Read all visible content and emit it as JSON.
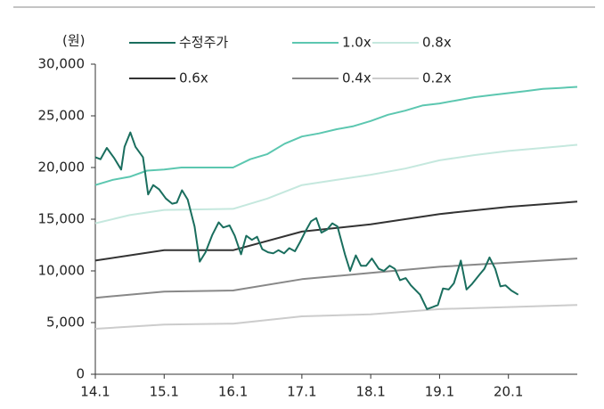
{
  "chart_data": {
    "type": "line",
    "unit_label": "(원)",
    "legend": "top",
    "grid": false,
    "xlim": [
      0,
      84
    ],
    "xticks": [
      {
        "value": 0,
        "label": "14.1"
      },
      {
        "value": 12,
        "label": "15.1"
      },
      {
        "value": 24,
        "label": "16.1"
      },
      {
        "value": 36,
        "label": "17.1"
      },
      {
        "value": 48,
        "label": "18.1"
      },
      {
        "value": 60,
        "label": "19.1"
      },
      {
        "value": 72,
        "label": "20.1"
      }
    ],
    "ylim": [
      0,
      30000
    ],
    "yticks": [
      0,
      {
        "value": 5000,
        "label": "5,000"
      },
      {
        "value": 10000,
        "label": "10,000"
      },
      {
        "value": 15000,
        "label": "15,000"
      },
      {
        "value": 20000,
        "label": "20,000"
      },
      {
        "value": 25000,
        "label": "25,000"
      },
      {
        "value": 30000,
        "label": "30,000"
      }
    ],
    "series": [
      {
        "name": "수정주가",
        "color": "#1a6e5e",
        "x": [
          0,
          0.9,
          2.0,
          3.3,
          4.5,
          5.1,
          6.1,
          7.0,
          8.3,
          9.2,
          10.1,
          11.1,
          12.3,
          13.4,
          14.2,
          15.1,
          16.1,
          17.3,
          18.2,
          19.2,
          20.4,
          21.5,
          22.3,
          23.4,
          24.3,
          25.4,
          26.3,
          27.3,
          28.2,
          29.1,
          30.1,
          31.0,
          31.9,
          32.9,
          33.8,
          34.8,
          35.7,
          36.6,
          37.6,
          38.5,
          39.4,
          40.4,
          41.3,
          42.2,
          43.5,
          44.4,
          45.4,
          46.3,
          47.2,
          48.2,
          49.4,
          50.3,
          51.3,
          52.2,
          53.1,
          54.1,
          55.0,
          56.6,
          57.8,
          58.8,
          59.7,
          60.6,
          61.6,
          62.5,
          63.7,
          64.7,
          65.6,
          66.9,
          67.8,
          68.7,
          69.7,
          70.6,
          71.5,
          72.5,
          73.7
        ],
        "values": [
          21000,
          20800,
          21900,
          20900,
          19800,
          22000,
          23400,
          22000,
          21000,
          17400,
          18300,
          17900,
          17000,
          16500,
          16600,
          17800,
          16900,
          14300,
          10900,
          11800,
          13500,
          14700,
          14200,
          14400,
          13400,
          11600,
          13400,
          13000,
          13300,
          12100,
          11800,
          11700,
          12000,
          11700,
          12200,
          11900,
          12800,
          13800,
          14800,
          15100,
          13700,
          14000,
          14600,
          14300,
          11600,
          10000,
          11500,
          10500,
          10500,
          11200,
          10200,
          10000,
          10500,
          10200,
          9100,
          9300,
          8600,
          7700,
          6300,
          6500,
          6700,
          8300,
          8200,
          8800,
          11000,
          8200,
          8700,
          9600,
          10200,
          11300,
          10200,
          8500,
          8600,
          8100,
          7700
        ]
      },
      {
        "name": "1.0x",
        "color": "#5cc7b0",
        "x": [
          0,
          3,
          6,
          9,
          12,
          15,
          18,
          21,
          24,
          27,
          30,
          33,
          36,
          39,
          42,
          45,
          48,
          51,
          54,
          57,
          60,
          63,
          66,
          69,
          72,
          75,
          78,
          81,
          84
        ],
        "values": [
          18300,
          18800,
          19100,
          19700,
          19800,
          20000,
          20000,
          20000,
          20000,
          20800,
          21300,
          22300,
          23000,
          23300,
          23700,
          24000,
          24500,
          25100,
          25500,
          26000,
          26200,
          26500,
          26800,
          27000,
          27200,
          27400,
          27600,
          27700,
          27800
        ]
      },
      {
        "name": "0.8x",
        "color": "#c5e8de",
        "x": [
          0,
          6,
          12,
          24,
          30,
          36,
          42,
          48,
          54,
          60,
          66,
          72,
          78,
          84
        ],
        "values": [
          14600,
          15400,
          15900,
          16000,
          17000,
          18300,
          18800,
          19300,
          19900,
          20700,
          21200,
          21600,
          21900,
          22200
        ]
      },
      {
        "name": "0.6x",
        "color": "#333333",
        "x": [
          0,
          12,
          24,
          36,
          48,
          60,
          72,
          84
        ],
        "values": [
          11000,
          12000,
          12000,
          13800,
          14500,
          15500,
          16200,
          16700
        ]
      },
      {
        "name": "0.4x",
        "color": "#888888",
        "x": [
          0,
          12,
          24,
          36,
          48,
          60,
          72,
          84
        ],
        "values": [
          7400,
          8000,
          8100,
          9200,
          9800,
          10400,
          10800,
          11200
        ]
      },
      {
        "name": "0.2x",
        "color": "#cccccc",
        "x": [
          0,
          12,
          24,
          36,
          48,
          60,
          72,
          84
        ],
        "values": [
          4400,
          4800,
          4900,
          5600,
          5800,
          6300,
          6500,
          6700
        ]
      }
    ]
  }
}
